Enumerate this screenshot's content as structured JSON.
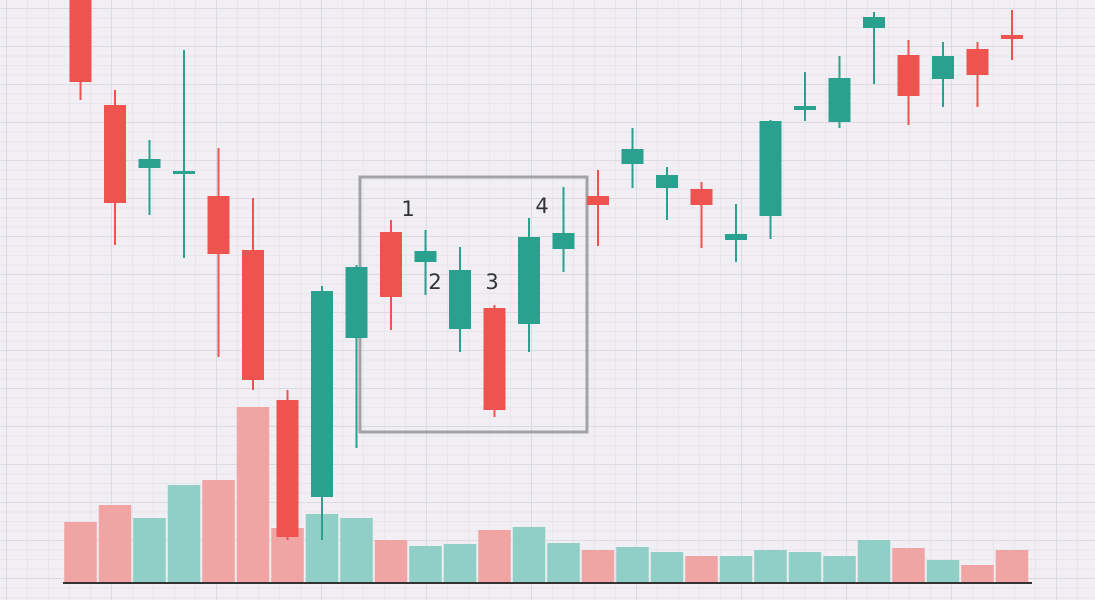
{
  "chart_data": {
    "type": "candlestick",
    "up_color": "#2aa08f",
    "down_color": "#ef5350",
    "volume_up_color": "#90cfc5",
    "volume_down_color": "#f1a4a4",
    "ylim": [
      0,
      600
    ],
    "volume_lim": [
      0,
      580
    ],
    "open": [
      600,
      495,
      432,
      426,
      404,
      350,
      200,
      103,
      262,
      368,
      338,
      271,
      292,
      276,
      351,
      404,
      436,
      412,
      411,
      360,
      384,
      490,
      478,
      572,
      545,
      521,
      551,
      565
    ],
    "high": [
      600,
      510,
      460,
      550,
      452,
      402,
      210,
      314,
      335,
      380,
      370,
      353,
      295,
      382,
      413,
      430,
      472,
      433,
      418,
      396,
      480,
      528,
      544,
      588,
      560,
      558,
      558,
      590
    ],
    "low": [
      500,
      355,
      385,
      342,
      243,
      210,
      60,
      60,
      152,
      270,
      305,
      248,
      183,
      248,
      328,
      354,
      412,
      380,
      352,
      338,
      361,
      479,
      472,
      516,
      475,
      493,
      493,
      540
    ],
    "close": [
      518,
      397,
      441,
      429,
      346,
      220,
      63,
      309,
      333,
      303,
      349,
      330,
      190,
      363,
      367,
      395,
      451,
      425,
      395,
      366,
      479,
      494,
      522,
      583,
      504,
      544,
      525,
      561
    ],
    "volume": [
      60,
      77,
      64,
      97,
      102,
      175,
      54,
      68,
      64,
      42,
      36,
      38,
      52,
      55,
      39,
      32,
      35,
      30,
      26,
      26,
      32,
      30,
      26,
      42,
      34,
      22,
      17,
      32
    ],
    "annotations": [
      "1",
      "2",
      "3",
      "4"
    ]
  }
}
